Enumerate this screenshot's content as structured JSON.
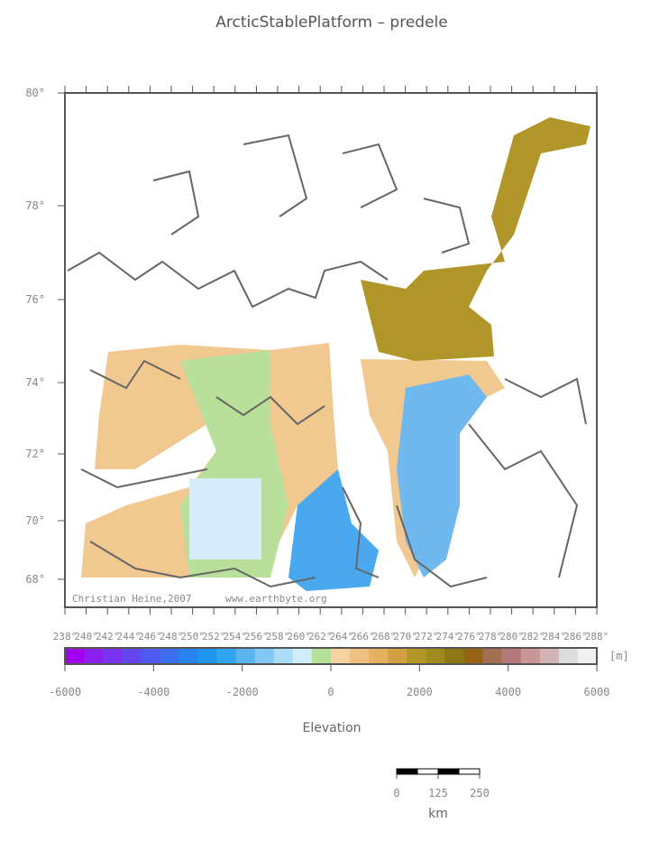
{
  "title": "ArcticStablePlatform – predele",
  "lat_labels": [
    "80°",
    "78°",
    "76°",
    "74°",
    "72°",
    "70°",
    "68°"
  ],
  "lon_labels": [
    "238°",
    "240°",
    "242°",
    "244°",
    "246°",
    "248°",
    "250°",
    "252°",
    "254°",
    "256°",
    "258°",
    "260°",
    "262°",
    "264°",
    "266°",
    "268°",
    "270°",
    "272°",
    "274°",
    "276°",
    "278°",
    "280°",
    "282°",
    "284°",
    "286°",
    "288°"
  ],
  "credits": [
    "Christian Heine,2007",
    "www.earthbyte.org"
  ],
  "colorbar": {
    "lim": [
      -6000,
      6000
    ],
    "ticks": [
      -6000,
      -4000,
      -2000,
      0,
      2000,
      4000,
      6000
    ],
    "unit": "[m]",
    "label": "Elevation",
    "colors": [
      "#a000f0",
      "#8c1ef0",
      "#7832f0",
      "#6446f0",
      "#505af0",
      "#3c6ef0",
      "#2882f0",
      "#1e96f0",
      "#32a5f0",
      "#5ab4f0",
      "#82c8f5",
      "#aadcf8",
      "#d2ecfa",
      "#b4e09a",
      "#f5d2a0",
      "#f0c080",
      "#e6b060",
      "#d2a040",
      "#b49628",
      "#a08c1e",
      "#8c7814",
      "#966414",
      "#a07050",
      "#b47878",
      "#c89696",
      "#d2b4b4",
      "#dcdcdc",
      "#f0f0f0"
    ]
  },
  "scale_bar": {
    "ticks": [
      0,
      125,
      250
    ],
    "unit": "km"
  }
}
